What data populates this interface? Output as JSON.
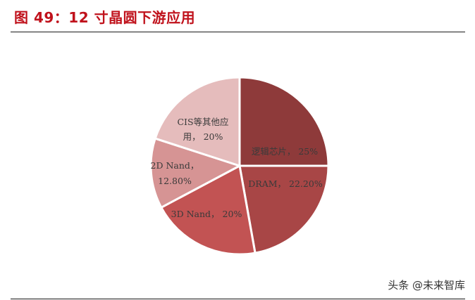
{
  "header": {
    "title": "图 49：12 寸晶圆下游应用"
  },
  "footer": {
    "watermark": "头条 @未来智库"
  },
  "chart_data": {
    "type": "pie",
    "title": "图 49：12 寸晶圆下游应用",
    "start_angle": "12 o'clock, clockwise",
    "slices": [
      {
        "label": "逻辑芯片",
        "value": 25.0,
        "display": "逻辑芯片, 25%",
        "color": "#8e3a3a"
      },
      {
        "label": "DRAM",
        "value": 22.2,
        "display": "DRAM, 22.20%",
        "color": "#a84646"
      },
      {
        "label": "3D Nand",
        "value": 20.0,
        "display": "3D Nand, 20%",
        "color": "#c25353"
      },
      {
        "label": "2D Nand",
        "value": 12.8,
        "display": "2D Nand, 12.80%",
        "color": "#d69494"
      },
      {
        "label": "CIS等其他应用",
        "value": 20.0,
        "display": "CIS等其他应用, 20%",
        "color": "#e5bcbc"
      }
    ],
    "legend": "none (data labels inside slices)"
  },
  "labels": {
    "logic": "逻辑芯片， 25%",
    "dram": "DRAM， 22.20%",
    "nand3d": "3D Nand， 20%",
    "nand2d_l1": "2D Nand，",
    "nand2d_l2": "12.80%",
    "cis_l1": "CIS等其他应",
    "cis_l2": "用， 20%"
  }
}
